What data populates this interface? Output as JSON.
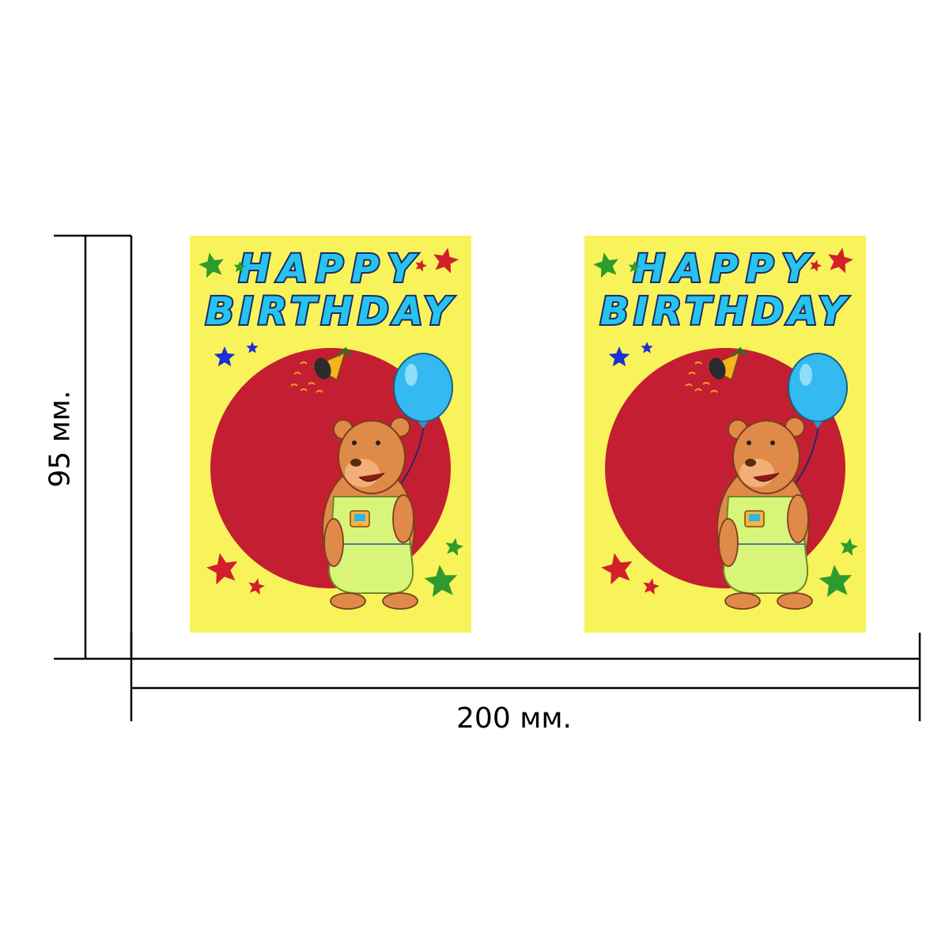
{
  "dimensions": {
    "width_label": "200 мм.",
    "height_label": "95 мм."
  },
  "cards": [
    {
      "line1": "HAPPY",
      "line2": "BIRTHDAY"
    },
    {
      "line1": "HAPPY",
      "line2": "BIRTHDAY"
    }
  ],
  "colors": {
    "card_background": "#f8f35a",
    "circle": "#c41e32",
    "title_fill": "#27c3ef",
    "title_outline": "#1b2a6b",
    "balloon": "#34b9f0",
    "star_red": "#d21f2b",
    "star_green": "#2e9b2e",
    "star_blue": "#1a2fd6"
  },
  "icons": [
    "star-icon",
    "balloon-icon",
    "party-horn-icon",
    "bear-illustration"
  ]
}
